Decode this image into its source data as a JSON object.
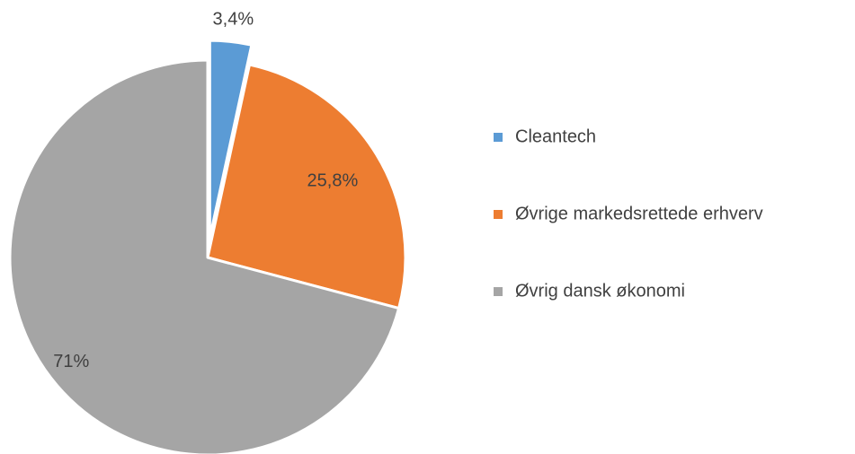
{
  "chart_data": {
    "type": "pie",
    "categories": [
      "Cleantech",
      "Øvrige markedsrettede erhverv",
      "Øvrig dansk økonomi"
    ],
    "values": [
      3.4,
      25.8,
      71
    ],
    "value_labels": [
      "3,4%",
      "25,8%",
      "71%"
    ],
    "colors": [
      "#5b9bd5",
      "#ed7d31",
      "#a5a5a5"
    ],
    "legend": "right"
  }
}
